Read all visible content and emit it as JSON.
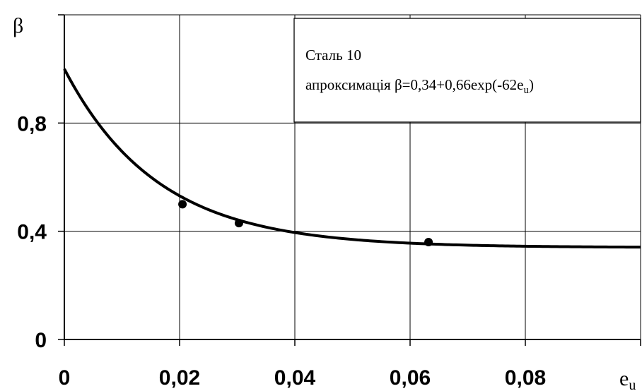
{
  "chart_data": {
    "type": "scatter",
    "ylabel": "β",
    "xlabel": "e",
    "xlabel_sub": "u",
    "xlim": [
      0,
      0.1
    ],
    "ylim": [
      0,
      1.2
    ],
    "x_ticks": [
      0,
      0.02,
      0.04,
      0.06,
      0.08
    ],
    "x_tick_labels": [
      "0",
      "0,02",
      "0,04",
      "0,06",
      "0,08"
    ],
    "y_ticks": [
      0,
      0.4,
      0.8
    ],
    "y_tick_labels": [
      "0",
      "0,4",
      "0,8"
    ],
    "grid": true,
    "legend_position": "top-right",
    "legend": {
      "line1": "Сталь 10",
      "line2_prefix": "апроксимація β=0,34+0,66exp(-62e",
      "line2_sub": "u",
      "line2_suffix": ")"
    },
    "points": [
      {
        "x": 0.0205,
        "y": 0.5
      },
      {
        "x": 0.0303,
        "y": 0.43
      },
      {
        "x": 0.0632,
        "y": 0.36
      }
    ],
    "fit": {
      "a": 0.34,
      "b": 0.66,
      "k": -62,
      "x_range": [
        0,
        0.1
      ]
    },
    "colors": {
      "line": "#000000",
      "points": "#000000",
      "grid": "#000000"
    }
  }
}
